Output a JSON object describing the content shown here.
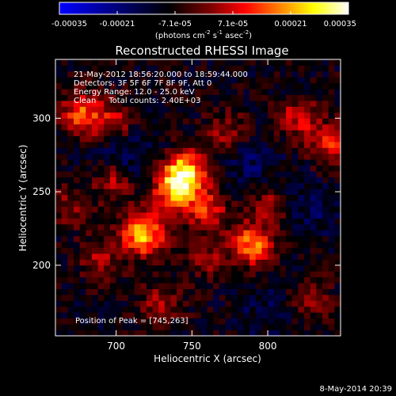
{
  "colorbar": {
    "ticks": [
      "-0.00035",
      "-0.00021",
      "-7.1e-05",
      "7.1e-05",
      "0.00021",
      "0.00035"
    ],
    "units_main": "(photons cm",
    "units_sup1": "-2",
    "units_s": " s",
    "units_sup2": "-1",
    "units_asec": " asec",
    "units_sup3": "-2",
    "units_close": ")",
    "range": [
      -0.00035,
      0.00035
    ],
    "palette": [
      "#0000ff",
      "#000000",
      "#800000",
      "#ff0000",
      "#ff8000",
      "#ffff00",
      "#ffffff"
    ]
  },
  "chart_data": {
    "type": "heatmap",
    "title": "Reconstructed RHESSI Image",
    "xlabel": "Heliocentric X (arcsec)",
    "ylabel": "Heliocentric Y (arcsec)",
    "xlim": [
      660,
      848
    ],
    "ylim": [
      152,
      340
    ],
    "xticks": [
      700,
      750,
      800
    ],
    "yticks": [
      200,
      250,
      300
    ],
    "annotations": [
      "21-May-2012 18:56:20.000 to 18:59:44.000",
      "Detectors: 3F 5F 6F 7F 8F 9F, Att 0",
      "Energy Range: 12.0 - 25.0 keV",
      "Clean     Total counts: 2.40E+03"
    ],
    "peak_label": "Position of Peak = [745,263]",
    "peak": [
      745,
      263
    ],
    "sources": [
      {
        "x": 745,
        "y": 263,
        "intensity": 0.00035
      },
      {
        "x": 718,
        "y": 221,
        "intensity": 0.00032
      },
      {
        "x": 738,
        "y": 250,
        "intensity": 0.00025
      },
      {
        "x": 790,
        "y": 214,
        "intensity": 0.00027
      },
      {
        "x": 700,
        "y": 258,
        "intensity": 0.0002
      },
      {
        "x": 677,
        "y": 303,
        "intensity": 0.00022
      },
      {
        "x": 698,
        "y": 298,
        "intensity": 0.00014
      },
      {
        "x": 760,
        "y": 238,
        "intensity": 0.00018
      },
      {
        "x": 773,
        "y": 290,
        "intensity": 0.00013
      },
      {
        "x": 820,
        "y": 300,
        "intensity": 0.00016
      },
      {
        "x": 842,
        "y": 282,
        "intensity": 0.00018
      },
      {
        "x": 690,
        "y": 205,
        "intensity": 0.00012
      },
      {
        "x": 730,
        "y": 175,
        "intensity": 0.00012
      },
      {
        "x": 800,
        "y": 242,
        "intensity": 0.00012
      },
      {
        "x": 670,
        "y": 240,
        "intensity": 0.00011
      },
      {
        "x": 760,
        "y": 205,
        "intensity": 0.0001
      },
      {
        "x": 828,
        "y": 178,
        "intensity": 0.0001
      }
    ],
    "negatives": [
      {
        "x": 705,
        "y": 270,
        "intensity": -0.00012
      },
      {
        "x": 790,
        "y": 270,
        "intensity": -8e-05
      },
      {
        "x": 830,
        "y": 240,
        "intensity": -7e-05
      },
      {
        "x": 800,
        "y": 170,
        "intensity": -6e-05
      }
    ],
    "colorbar_range": [
      -0.00035,
      0.00035
    ]
  },
  "footer": {
    "date": "8-May-2014 20:39"
  }
}
